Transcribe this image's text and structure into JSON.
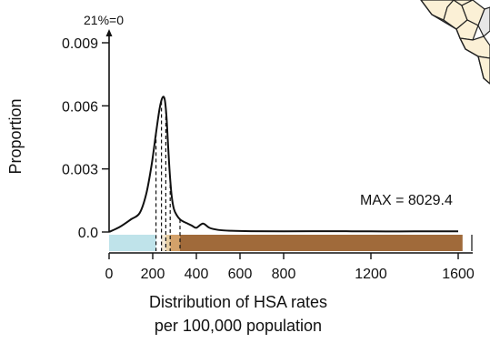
{
  "chart_data": {
    "type": "area",
    "title": "",
    "xlabel_line1": "Distribution of HSA rates",
    "xlabel_line2": "per 100,000 population",
    "ylabel": "Proportion",
    "xlim": [
      0,
      1600
    ],
    "ylim": [
      0,
      0.009
    ],
    "x_ticks": [
      0,
      200,
      400,
      600,
      800,
      1200,
      1600
    ],
    "x_tick_labels": [
      "0",
      "200",
      "400",
      "600",
      "800",
      "1200",
      "1600"
    ],
    "y_ticks": [
      0,
      0.003,
      0.006,
      0.009
    ],
    "y_tick_labels": [
      "0.0",
      "0.003",
      "0.006",
      "0.009"
    ],
    "zero_annotation": "21%=0",
    "max_annotation": "MAX = 8029.4",
    "density": {
      "x": [
        0,
        50,
        100,
        140,
        170,
        195,
        215,
        232,
        245,
        255,
        263,
        270,
        278,
        287,
        297,
        310,
        325,
        340,
        360,
        380,
        400,
        430,
        460,
        500,
        560,
        650,
        800,
        1000,
        1200,
        1400,
        1600
      ],
      "y": [
        0.0,
        0.00025,
        0.0006,
        0.0009,
        0.0018,
        0.0032,
        0.0047,
        0.0059,
        0.0064,
        0.0063,
        0.0055,
        0.0042,
        0.0028,
        0.0017,
        0.0011,
        0.0008,
        0.0006,
        0.0005,
        0.0004,
        0.0003,
        0.0002,
        0.0004,
        0.0002,
        0.0001,
        6e-05,
        4e-05,
        3e-05,
        4e-05,
        3e-05,
        3e-05,
        3e-05
      ]
    },
    "quantile_lines": [
      215,
      240,
      260,
      280,
      325
    ],
    "color_bands": [
      {
        "from": 0,
        "to": 215,
        "color": "#bfe3ea"
      },
      {
        "from": 215,
        "to": 240,
        "color": "#ffffff"
      },
      {
        "from": 240,
        "to": 260,
        "color": "#f2e8d6"
      },
      {
        "from": 260,
        "to": 280,
        "color": "#e8cfa3"
      },
      {
        "from": 280,
        "to": 325,
        "color": "#d3a16a"
      },
      {
        "from": 325,
        "to": 1620,
        "color": "#a06a3a"
      }
    ],
    "grid": false,
    "legend": "none"
  },
  "colors": {
    "axis": "#111111",
    "curve": "#111111",
    "map_fill": "#fbf0d6",
    "map_fill_gray": "#e7e7e7",
    "map_stroke": "#222222"
  }
}
